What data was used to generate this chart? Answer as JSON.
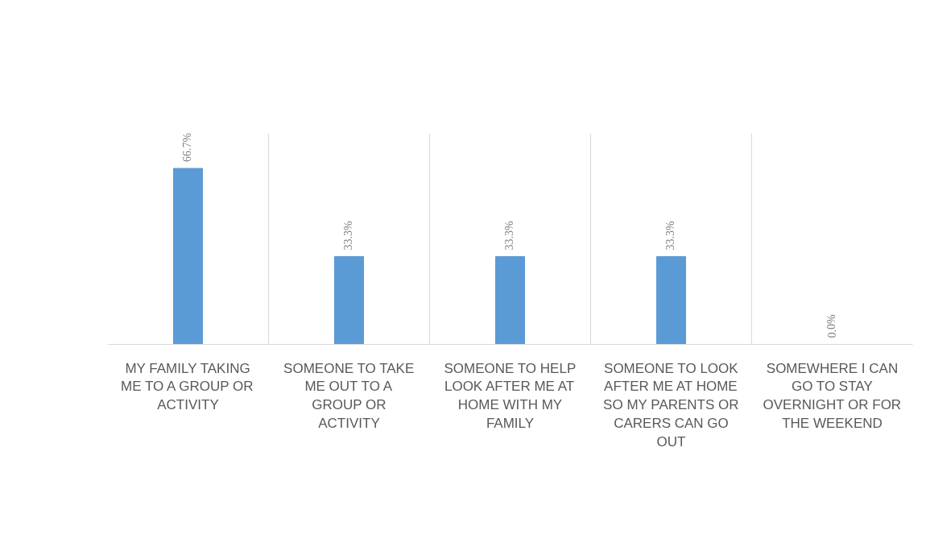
{
  "chart_data": {
    "type": "bar",
    "categories": [
      "MY FAMILY TAKING ME TO A GROUP OR ACTIVITY",
      "SOMEONE TO TAKE ME OUT TO A GROUP OR ACTIVITY",
      "SOMEONE TO HELP LOOK AFTER ME AT HOME WITH MY FAMILY",
      "SOMEONE TO LOOK AFTER ME AT HOME SO MY PARENTS OR CARERS CAN GO OUT",
      "SOMEWHERE I CAN GO TO STAY OVERNIGHT OR FOR THE WEEKEND"
    ],
    "values": [
      66.7,
      33.3,
      33.3,
      33.3,
      0.0
    ],
    "value_labels": [
      "66.7%",
      "33.3%",
      "33.3%",
      "33.3%",
      "0.0%"
    ],
    "color": "#5b9bd5",
    "ylim": [
      0,
      80
    ],
    "grid": "x"
  }
}
